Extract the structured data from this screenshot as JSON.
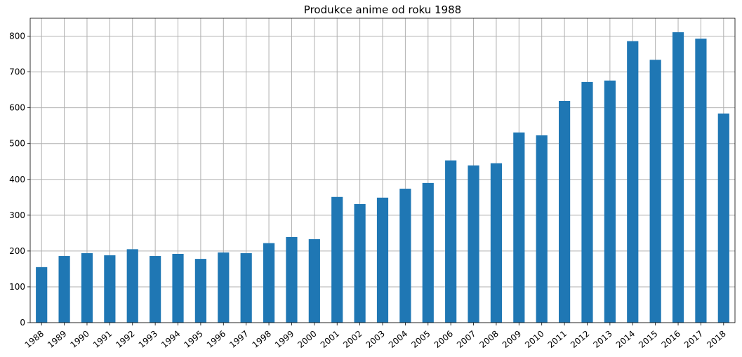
{
  "chart_data": {
    "type": "bar",
    "title": "Produkce anime od roku 1988",
    "xlabel": "",
    "ylabel": "",
    "categories": [
      "1988",
      "1989",
      "1990",
      "1991",
      "1992",
      "1993",
      "1994",
      "1995",
      "1996",
      "1997",
      "1998",
      "1999",
      "2000",
      "2001",
      "2002",
      "2003",
      "2004",
      "2005",
      "2006",
      "2007",
      "2008",
      "2009",
      "2010",
      "2011",
      "2012",
      "2013",
      "2014",
      "2015",
      "2016",
      "2017",
      "2018"
    ],
    "values": [
      155,
      186,
      194,
      188,
      205,
      186,
      192,
      178,
      196,
      194,
      222,
      239,
      233,
      351,
      331,
      349,
      374,
      390,
      453,
      439,
      445,
      531,
      523,
      619,
      672,
      676,
      786,
      734,
      811,
      793,
      584
    ],
    "yticks": [
      0,
      100,
      200,
      300,
      400,
      500,
      600,
      700,
      800
    ],
    "ylim": [
      0,
      850
    ],
    "grid": true,
    "bar_color": "#1f77b4",
    "grid_color": "#b0b0b0"
  }
}
